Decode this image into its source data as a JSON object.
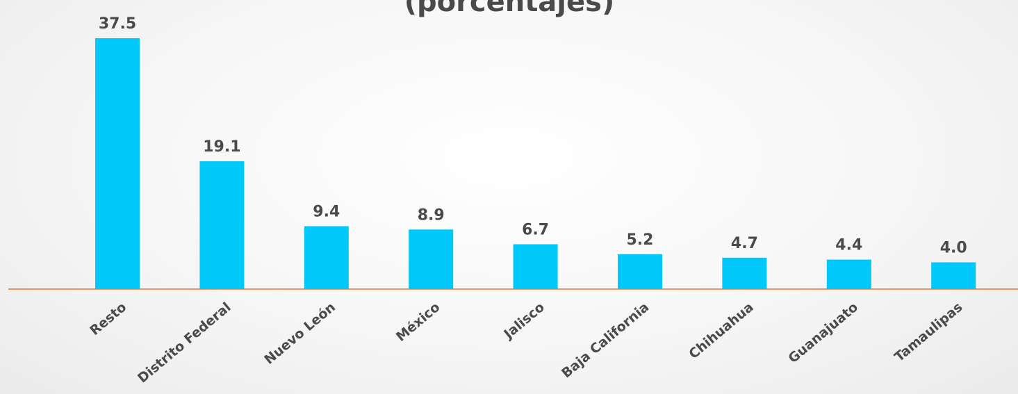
{
  "chart_data": {
    "type": "bar",
    "title": "(porcentajes)",
    "categories": [
      "Resto",
      "Distrito Federal",
      "Nuevo León",
      "México",
      "Jalisco",
      "Baja California",
      "Chihuahua",
      "Guanajuato",
      "Tamaulipas"
    ],
    "values": [
      37.5,
      19.1,
      9.4,
      8.9,
      6.7,
      5.2,
      4.7,
      4.4,
      4.0
    ],
    "value_labels": [
      "37.5",
      "19.1",
      "9.4",
      "8.9",
      "6.7",
      "5.2",
      "4.7",
      "4.4",
      "4.0"
    ],
    "xlabel": "",
    "ylabel": "",
    "ylim": [
      0,
      37.5
    ],
    "grid": false,
    "legend": "none",
    "colors": {
      "bar": "#00c8f8",
      "axis": "#e8743b",
      "text": "#4a4a4a"
    }
  }
}
